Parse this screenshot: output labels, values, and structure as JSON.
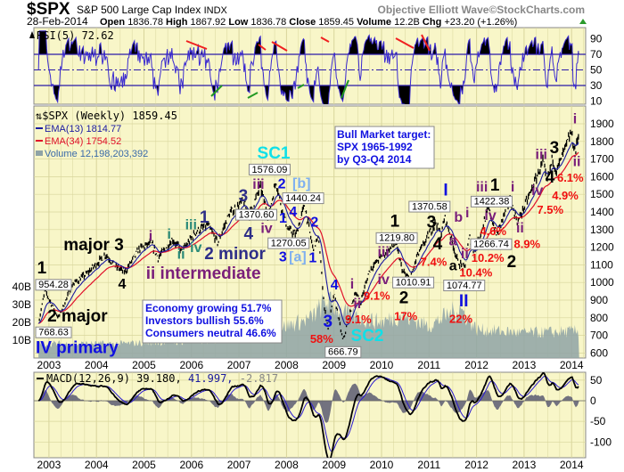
{
  "header": {
    "symbol": "$SPX",
    "name": "S&P 500 Large Cap Index",
    "exchange": "INDX",
    "credit": "Objective Elliott Wave©StockCharts.com",
    "date": "28-Feb-2014",
    "open_label": "Open",
    "open": "1836.78",
    "high_label": "High",
    "high": "1867.92",
    "low_label": "Low",
    "low": "1836.78",
    "close_label": "Close",
    "close": "1859.45",
    "volume_label": "Volume",
    "volume": "12.2B",
    "chg_label": "Chg",
    "chg": "+23.20 (+1.26%)"
  },
  "colors": {
    "panel": "#f8f6c8",
    "grid": "#d8d59c",
    "ema13": "#1a1aa0",
    "ema34": "#e0102a",
    "volume": "#8fa3a6",
    "up": "#2a9a2a"
  },
  "chart_data": {
    "type": "line",
    "title": "$SPX S&P 500 Large Cap Index INDX (Weekly)",
    "x_ticks": [
      "2003",
      "2004",
      "2005",
      "2006",
      "2007",
      "2008",
      "2009",
      "2010",
      "2011",
      "2012",
      "2013",
      "2014"
    ],
    "price_axis": {
      "ticks": [
        "1900",
        "1800",
        "1700",
        "1600",
        "1500",
        "1400",
        "1300",
        "1200",
        "1100",
        "1000",
        "900",
        "800",
        "700",
        "600"
      ],
      "range": [
        600,
        1900
      ]
    },
    "volume_axis": {
      "ticks": [
        "40B",
        "30B",
        "20B",
        "10B"
      ]
    },
    "rsi_axis": {
      "ticks": [
        "90",
        "70",
        "50",
        "30",
        "10"
      ]
    },
    "macd_axis": {
      "ticks": [
        "50",
        "0",
        "-50",
        "-100"
      ]
    },
    "legend": {
      "rsi": "RSI(5) 72.62",
      "price": "$SPX (Weekly) 1859.45",
      "ema13": "EMA(13) 1814.77",
      "ema34": "EMA(34) 1754.52",
      "volume": "Volume 12,198,203,392",
      "macd_name": "MACD(12,26,9) 39.180,",
      "macd_signal": " 41.997,",
      "macd_hist": " -2.817"
    },
    "price_pivots": [
      [
        2002.78,
        768.63
      ],
      [
        2002.92,
        954.28
      ],
      [
        2003.05,
        880
      ],
      [
        2003.2,
        800
      ],
      [
        2003.5,
        990
      ],
      [
        2003.8,
        1050
      ],
      [
        2004.2,
        1160
      ],
      [
        2004.4,
        1090
      ],
      [
        2004.6,
        1060
      ],
      [
        2004.9,
        1190
      ],
      [
        2005.15,
        1225
      ],
      [
        2005.3,
        1140
      ],
      [
        2005.6,
        1245
      ],
      [
        2005.8,
        1175
      ],
      [
        2006.1,
        1290
      ],
      [
        2006.35,
        1325
      ],
      [
        2006.55,
        1225
      ],
      [
        2006.8,
        1390
      ],
      [
        2007.1,
        1460
      ],
      [
        2007.2,
        1370
      ],
      [
        2007.45,
        1540
      ],
      [
        2007.62,
        1370.6
      ],
      [
        2007.78,
        1576.09
      ],
      [
        2007.9,
        1420
      ],
      [
        2008.03,
        1300
      ],
      [
        2008.2,
        1270.05
      ],
      [
        2008.38,
        1440.24
      ],
      [
        2008.55,
        1200
      ],
      [
        2008.68,
        1250
      ],
      [
        2008.8,
        850
      ],
      [
        2008.88,
        740
      ],
      [
        2009.0,
        935
      ],
      [
        2009.19,
        666.79
      ],
      [
        2009.45,
        950
      ],
      [
        2009.55,
        880
      ],
      [
        2009.75,
        1070
      ],
      [
        2010.0,
        1150
      ],
      [
        2010.3,
        1219.8
      ],
      [
        2010.45,
        1060
      ],
      [
        2010.6,
        1010.91
      ],
      [
        2010.75,
        1150
      ],
      [
        2011.15,
        1344
      ],
      [
        2011.25,
        1260
      ],
      [
        2011.33,
        1370.58
      ],
      [
        2011.45,
        1270
      ],
      [
        2011.6,
        1120
      ],
      [
        2011.75,
        1074.77
      ],
      [
        2011.85,
        1260
      ],
      [
        2011.95,
        1160
      ],
      [
        2012.25,
        1422.38
      ],
      [
        2012.42,
        1266.74
      ],
      [
        2012.7,
        1470
      ],
      [
        2012.87,
        1343
      ],
      [
        2013.15,
        1520
      ],
      [
        2013.4,
        1687
      ],
      [
        2013.48,
        1560
      ],
      [
        2013.6,
        1710
      ],
      [
        2013.68,
        1630
      ],
      [
        2013.99,
        1849
      ],
      [
        2014.08,
        1737
      ],
      [
        2014.16,
        1859.45
      ]
    ],
    "volume_by_year_B": [
      [
        2002.8,
        8
      ],
      [
        2003.5,
        8
      ],
      [
        2004.5,
        8
      ],
      [
        2005.5,
        9
      ],
      [
        2006.5,
        10
      ],
      [
        2007.5,
        14
      ],
      [
        2008.5,
        22
      ],
      [
        2008.85,
        32
      ],
      [
        2009.3,
        24
      ],
      [
        2010.0,
        20
      ],
      [
        2010.4,
        24
      ],
      [
        2011.0,
        18
      ],
      [
        2011.65,
        28
      ],
      [
        2012.0,
        16
      ],
      [
        2013.0,
        14
      ],
      [
        2014.16,
        15
      ]
    ],
    "callouts": [
      {
        "text": "954.28",
        "t": 2002.85,
        "p": 1001
      },
      {
        "text": "768.63",
        "t": 2002.68,
        "p": 708
      },
      {
        "text": "1576.09",
        "t": 2007.65,
        "p": 1632
      },
      {
        "text": "1440.24",
        "t": 2008.35,
        "p": 1491
      },
      {
        "text": "1370.60",
        "t": 2007.45,
        "p": 1314
      },
      {
        "text": "1270.05",
        "t": 2008.03,
        "p": 1223
      },
      {
        "text": "666.79",
        "t": 2009.19,
        "p": 612
      },
      {
        "text": "1219.80",
        "t": 2010.32,
        "p": 1274
      },
      {
        "text": "1010.91",
        "t": 2010.6,
        "p": 951
      },
      {
        "text": "1370.58",
        "t": 2011.01,
        "p": 1425
      },
      {
        "text": "1074.77",
        "t": 2011.74,
        "p": 1016
      },
      {
        "text": "1422.38",
        "t": 2012.29,
        "p": 1471
      },
      {
        "text": "1266.74",
        "t": 2012.38,
        "p": 1208
      }
    ],
    "annotations": [
      {
        "text": "1",
        "t": 2002.85,
        "p": 1062,
        "c": "black",
        "s": "L"
      },
      {
        "text": "major 3",
        "t": 2003.94,
        "p": 1208,
        "c": "black",
        "s": "L"
      },
      {
        "text": "4",
        "t": 2004.54,
        "p": 986,
        "c": "black",
        "s": "M"
      },
      {
        "text": "i",
        "t": 2005.14,
        "p": 1259,
        "c": "purple",
        "s": "M"
      },
      {
        "text": "i",
        "t": 2005.53,
        "p": 1269,
        "c": "teal",
        "s": "M"
      },
      {
        "text": "iii",
        "t": 2005.99,
        "p": 1324,
        "c": "teal",
        "s": "M"
      },
      {
        "text": "1",
        "t": 2006.27,
        "p": 1365,
        "c": "navy",
        "s": "L"
      },
      {
        "text": "iv",
        "t": 2006.1,
        "p": 1193,
        "c": "teal",
        "s": "M"
      },
      {
        "text": "ii",
        "t": 2005.78,
        "p": 1127,
        "c": "teal",
        "s": "M"
      },
      {
        "text": "ii intermediate",
        "t": 2006.25,
        "p": 1082,
        "c": "purple",
        "s": "L"
      },
      {
        "text": "2 minor",
        "t": 2006.92,
        "p": 1163,
        "c": "navy",
        "s": "L"
      },
      {
        "text": "3",
        "t": 2007.09,
        "p": 1486,
        "c": "navy",
        "s": "L"
      },
      {
        "text": "iii",
        "t": 2007.41,
        "p": 1572,
        "c": "purple",
        "s": "M"
      },
      {
        "text": "4",
        "t": 2007.2,
        "p": 1309,
        "c": "navy",
        "s": "L"
      },
      {
        "text": "iv",
        "t": 2007.58,
        "p": 1259,
        "c": "purple",
        "s": "M"
      },
      {
        "text": "SC1",
        "t": 2007.73,
        "p": 1693,
        "c": "cyan",
        "s": "L"
      },
      {
        "text": "2",
        "t": 2007.9,
        "p": 1552,
        "c": "blue",
        "s": "M"
      },
      {
        "text": "[b]",
        "t": 2008.31,
        "p": 1552,
        "c": "lightblue",
        "s": "M"
      },
      {
        "text": "1",
        "t": 2007.84,
        "p": 1360,
        "c": "blue",
        "s": "M"
      },
      {
        "text": "4",
        "t": 2008.14,
        "p": 1415,
        "c": "blue",
        "s": "M"
      },
      {
        "text": "3",
        "t": 2007.97,
        "p": 1173,
        "c": "blue",
        "s": "M"
      },
      {
        "text": "[a]",
        "t": 2008.22,
        "p": 1173,
        "c": "lightblue",
        "s": "M"
      },
      {
        "text": "1",
        "t": 2008.52,
        "p": 1137,
        "c": "blue",
        "s": "M"
      },
      {
        "text": "2",
        "t": 2008.59,
        "p": 1339,
        "c": "blue",
        "s": "M"
      },
      {
        "text": "2 major",
        "t": 2003.6,
        "p": 728,
        "c": "black",
        "s": "L"
      },
      {
        "text": "IV primary",
        "t": 2003.43,
        "p": 658,
        "c": "blue",
        "s": "L"
      },
      {
        "text": "4",
        "t": 2009.01,
        "p": 981,
        "c": "blue",
        "s": "M"
      },
      {
        "text": "3",
        "t": 2008.87,
        "p": 673,
        "c": "blue",
        "s": "L"
      },
      {
        "text": "58%",
        "t": 2008.74,
        "p": 607,
        "c": "red",
        "s": "S"
      },
      {
        "text": "SC2",
        "t": 2009.7,
        "p": 607,
        "c": "cyan",
        "s": "L"
      },
      {
        "text": "i",
        "t": 2009.38,
        "p": 986,
        "c": "purple",
        "s": "M"
      },
      {
        "text": "ii",
        "t": 2009.49,
        "p": 809,
        "c": "purple",
        "s": "M"
      },
      {
        "text": "9.1%",
        "t": 2009.51,
        "p": 754,
        "c": "red",
        "s": "S"
      },
      {
        "text": "iii",
        "t": 2010.04,
        "p": 1173,
        "c": "purple",
        "s": "M"
      },
      {
        "text": "iv",
        "t": 2010.09,
        "p": 986,
        "c": "purple",
        "s": "M"
      },
      {
        "text": "9.1%",
        "t": 2009.92,
        "p": 946,
        "c": "red",
        "s": "S"
      },
      {
        "text": "1",
        "t": 2010.28,
        "p": 1314,
        "c": "black",
        "s": "L"
      },
      {
        "text": "2",
        "t": 2010.47,
        "p": 905,
        "c": "black",
        "s": "L"
      },
      {
        "text": "17%",
        "t": 2010.51,
        "p": 855,
        "c": "red",
        "s": "S"
      },
      {
        "text": "I",
        "t": 2011.35,
        "p": 1501,
        "c": "blue",
        "s": "L"
      },
      {
        "text": "3",
        "t": 2011.05,
        "p": 1360,
        "c": "black",
        "s": "L"
      },
      {
        "text": "4",
        "t": 2011.18,
        "p": 1188,
        "c": "black",
        "s": "L"
      },
      {
        "text": "7.4%",
        "t": 2011.26,
        "p": 1137,
        "c": "red",
        "s": "S"
      },
      {
        "text": "b",
        "t": 2011.67,
        "p": 1365,
        "c": "purple",
        "s": "M"
      },
      {
        "text": "i",
        "t": 2011.78,
        "p": 1390,
        "c": "purple",
        "s": "M"
      },
      {
        "text": "a",
        "t": 2011.5,
        "p": 1233,
        "c": "purple",
        "s": "M"
      },
      {
        "text": "a",
        "t": 2011.5,
        "p": 1077,
        "c": "black",
        "s": "M"
      },
      {
        "text": "II",
        "t": 2011.73,
        "p": 956,
        "c": "blue",
        "s": "L"
      },
      {
        "text": "22%",
        "t": 2011.67,
        "p": 880,
        "c": "red",
        "s": "S"
      },
      {
        "text": "ii",
        "t": 2011.89,
        "p": 1112,
        "c": "purple",
        "s": "M"
      },
      {
        "text": "10.4%",
        "t": 2011.86,
        "p": 1067,
        "c": "red",
        "s": "S"
      },
      {
        "text": "iii",
        "t": 2012.14,
        "p": 1516,
        "c": "purple",
        "s": "M"
      },
      {
        "text": "1",
        "t": 2012.36,
        "p": 1526,
        "c": "black",
        "s": "L"
      },
      {
        "text": "iv",
        "t": 2012.29,
        "p": 1299,
        "c": "purple",
        "s": "M"
      },
      {
        "text": "4.6%",
        "t": 2012.35,
        "p": 1259,
        "c": "red",
        "s": "S"
      },
      {
        "text": "2",
        "t": 2012.4,
        "p": 1158,
        "c": "black",
        "s": "L"
      },
      {
        "text": "10.2%",
        "t": 2012.42,
        "p": 1107,
        "c": "red",
        "s": "S"
      },
      {
        "text": "i",
        "t": 2012.76,
        "p": 1511,
        "c": "purple",
        "s": "M"
      },
      {
        "text": "ii",
        "t": 2012.89,
        "p": 1279,
        "c": "purple",
        "s": "M"
      },
      {
        "text": "8.9%",
        "t": 2013.0,
        "p": 1238,
        "c": "red",
        "s": "S"
      },
      {
        "text": "iii",
        "t": 2013.4,
        "p": 1723,
        "c": "purple",
        "s": "M"
      },
      {
        "text": "3",
        "t": 2013.6,
        "p": 1759,
        "c": "black",
        "s": "L"
      },
      {
        "text": "iv",
        "t": 2013.47,
        "p": 1501,
        "c": "purple",
        "s": "M"
      },
      {
        "text": "4",
        "t": 2013.7,
        "p": 1562,
        "c": "black",
        "s": "L"
      },
      {
        "text": "4.9%",
        "t": 2013.83,
        "p": 1501,
        "c": "red",
        "s": "S"
      },
      {
        "text": "7.5%",
        "t": 2013.55,
        "p": 1440,
        "c": "red",
        "s": "S"
      },
      {
        "text": "i",
        "t": 2014.07,
        "p": 1925,
        "c": "purple",
        "s": "M"
      },
      {
        "text": "ii",
        "t": 2014.11,
        "p": 1668,
        "c": "purple",
        "s": "M"
      },
      {
        "text": "6.1%",
        "t": 2014.18,
        "p": 1602,
        "c": "red",
        "s": "S"
      }
    ]
  },
  "notes": {
    "sentiment": [
      "Economy growing 51.7%",
      "Investors bullish 55.6%",
      "Consumers neutral 46.6%"
    ],
    "target": [
      "Bull Market target:",
      "SPX 1965-1992",
      "by Q3-Q4 2014"
    ]
  }
}
